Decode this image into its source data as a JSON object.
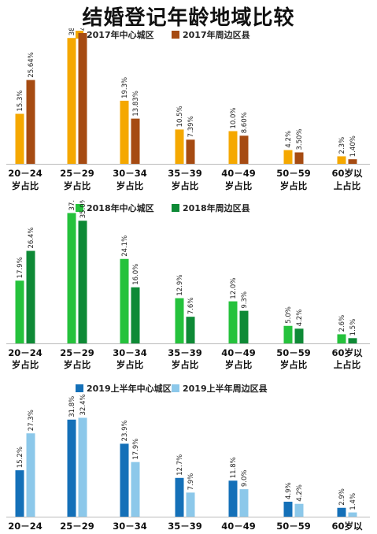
{
  "title": "结婚登记年龄地域比较",
  "categories": [
    {
      "line1": "20－24",
      "line2": "岁占比"
    },
    {
      "line1": "25－29",
      "line2": "岁占比"
    },
    {
      "line1": "30－34",
      "line2": "岁占比"
    },
    {
      "line1": "35－39",
      "line2": "岁占比"
    },
    {
      "line1": "40－49",
      "line2": "岁占比"
    },
    {
      "line1": "50－59",
      "line2": "岁占比"
    },
    {
      "line1": "60岁以",
      "line2": "上占比"
    }
  ],
  "chart_data": [
    {
      "type": "bar",
      "title": "",
      "series": [
        {
          "name": "2017年中心城区",
          "color": "#f5a800",
          "values": [
            15.3,
            38.5,
            19.3,
            10.5,
            10.0,
            4.2,
            2.3
          ],
          "labels": [
            "15.3%",
            "38.5%",
            "19.3%",
            "10.5%",
            "10.0%",
            "4.2%",
            "2.3%"
          ]
        },
        {
          "name": "2017年周边区县",
          "color": "#a64b12",
          "values": [
            25.64,
            40,
            13.83,
            7.39,
            8.6,
            3.5,
            1.4
          ],
          "labels": [
            "25.64%",
            "40%",
            "13.83%",
            "7.39%",
            "8.60%",
            "3.50%",
            "1.40%"
          ]
        }
      ],
      "ylim": [
        0,
        40
      ]
    },
    {
      "type": "bar",
      "title": "",
      "series": [
        {
          "name": "2018年中心城区",
          "color": "#25c23c",
          "values": [
            17.9,
            37.2,
            24.1,
            12.9,
            12.0,
            5.0,
            2.6
          ],
          "labels": [
            "17.9%",
            "37.2%",
            "24.1%",
            "12.9%",
            "12.0%",
            "5.0%",
            "2.6%"
          ]
        },
        {
          "name": "2018年周边区县",
          "color": "#0e8a36",
          "values": [
            26.4,
            35.0,
            16.0,
            7.6,
            9.3,
            4.2,
            1.5
          ],
          "labels": [
            "26.4%",
            "35.0%",
            "16.0%",
            "7.6%",
            "9.3%",
            "4.2%",
            "1.5%"
          ]
        }
      ],
      "ylim": [
        0,
        40
      ]
    },
    {
      "type": "bar",
      "title": "",
      "series": [
        {
          "name": "2019上半年中心城区",
          "color": "#1470b8",
          "values": [
            15.2,
            31.8,
            23.9,
            12.7,
            11.8,
            4.9,
            2.9
          ],
          "labels": [
            "15.2%",
            "31.8%",
            "23.9%",
            "12.7%",
            "11.8%",
            "4.9%",
            "2.9%"
          ]
        },
        {
          "name": "2019上半年周边区县",
          "color": "#8cc8ea",
          "values": [
            27.3,
            32.4,
            17.9,
            7.9,
            9.0,
            4.2,
            1.4
          ],
          "labels": [
            "27.3%",
            "32.4%",
            "17.9%",
            "7.9%",
            "9.0%",
            "4.2%",
            "1.4%"
          ]
        }
      ],
      "ylim": [
        0,
        40
      ]
    }
  ]
}
